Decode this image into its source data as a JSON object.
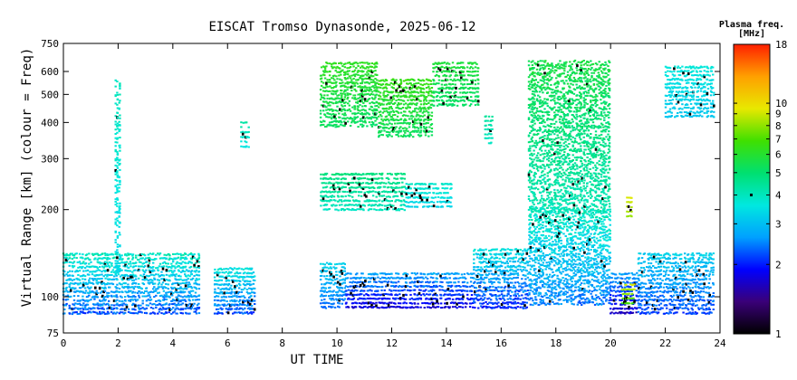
{
  "chart_data": {
    "type": "scatter",
    "title": "EISCAT Tromso Dynasonde, 2025-06-12",
    "xlabel": "UT TIME",
    "ylabel": "Virtual Range [km] (colour = Freq)",
    "xlim": [
      0,
      24
    ],
    "ylim": [
      75,
      750
    ],
    "yscale": "log",
    "x_ticks": [
      0,
      2,
      4,
      6,
      8,
      10,
      12,
      14,
      16,
      18,
      20,
      22,
      24
    ],
    "y_ticks": [
      75,
      100,
      200,
      300,
      400,
      500,
      600,
      750
    ],
    "grid": false,
    "colorbar": {
      "title_line1": "Plasma freq.",
      "title_line2": "[MHz]",
      "scale": "log",
      "range": [
        1,
        18
      ],
      "ticks": [
        1,
        2,
        3,
        4,
        5,
        6,
        7,
        8,
        9,
        10,
        18
      ],
      "colors": [
        "#000000",
        "#3a0078",
        "#0000ff",
        "#00a0ff",
        "#00e8e0",
        "#00e070",
        "#40e000",
        "#e8e800",
        "#ffa000",
        "#ff2000"
      ]
    },
    "series": [
      {
        "bands": [
          {
            "t0": 0.0,
            "t1": 5.0,
            "h0": 88,
            "h1": 140,
            "f0": 2.0,
            "f1": 4.5
          },
          {
            "t0": 5.5,
            "t1": 7.0,
            "h0": 88,
            "h1": 125,
            "f0": 2.0,
            "f1": 4.0
          },
          {
            "t0": 9.4,
            "t1": 10.3,
            "h0": 92,
            "h1": 130,
            "f0": 2.2,
            "f1": 3.5
          },
          {
            "t0": 10.3,
            "t1": 15.0,
            "h0": 92,
            "h1": 120,
            "f0": 1.6,
            "f1": 3.0
          },
          {
            "t0": 15.0,
            "t1": 17.0,
            "h0": 92,
            "h1": 145,
            "f0": 1.8,
            "f1": 4.0
          },
          {
            "t0": 17.0,
            "t1": 20.0,
            "h0": 95,
            "h1": 200,
            "f0": 2.2,
            "f1": 4.5
          },
          {
            "t0": 20.0,
            "t1": 21.0,
            "h0": 88,
            "h1": 120,
            "f0": 1.5,
            "f1": 3.0
          },
          {
            "t0": 21.0,
            "t1": 23.8,
            "h0": 88,
            "h1": 140,
            "f0": 2.0,
            "f1": 3.5
          },
          {
            "t0": 1.9,
            "t1": 2.1,
            "h0": 120,
            "h1": 560,
            "f0": 3.2,
            "f1": 4.2
          },
          {
            "t0": 6.5,
            "t1": 6.8,
            "h0": 330,
            "h1": 400,
            "f0": 3.5,
            "f1": 4.5
          },
          {
            "t0": 9.4,
            "t1": 12.5,
            "h0": 200,
            "h1": 265,
            "f0": 3.8,
            "f1": 5.0
          },
          {
            "t0": 12.5,
            "t1": 14.2,
            "h0": 205,
            "h1": 245,
            "f0": 3.2,
            "f1": 4.0
          },
          {
            "t0": 9.4,
            "t1": 11.5,
            "h0": 390,
            "h1": 640,
            "f0": 5.0,
            "f1": 6.5
          },
          {
            "t0": 11.5,
            "t1": 13.5,
            "h0": 360,
            "h1": 560,
            "f0": 5.0,
            "f1": 6.8
          },
          {
            "t0": 13.5,
            "t1": 15.2,
            "h0": 460,
            "h1": 640,
            "f0": 5.0,
            "f1": 6.0
          },
          {
            "t0": 15.4,
            "t1": 15.7,
            "h0": 340,
            "h1": 420,
            "f0": 3.8,
            "f1": 4.5
          },
          {
            "t0": 17.0,
            "t1": 20.0,
            "h0": 200,
            "h1": 640,
            "f0": 3.8,
            "f1": 6.0
          },
          {
            "t0": 20.4,
            "t1": 20.9,
            "h0": 95,
            "h1": 110,
            "f0": 6.5,
            "f1": 9.5
          },
          {
            "t0": 20.6,
            "t1": 20.8,
            "h0": 190,
            "h1": 220,
            "f0": 8.0,
            "f1": 9.5
          },
          {
            "t0": 22.0,
            "t1": 23.8,
            "h0": 420,
            "h1": 620,
            "f0": 3.0,
            "f1": 3.8
          }
        ]
      }
    ]
  }
}
